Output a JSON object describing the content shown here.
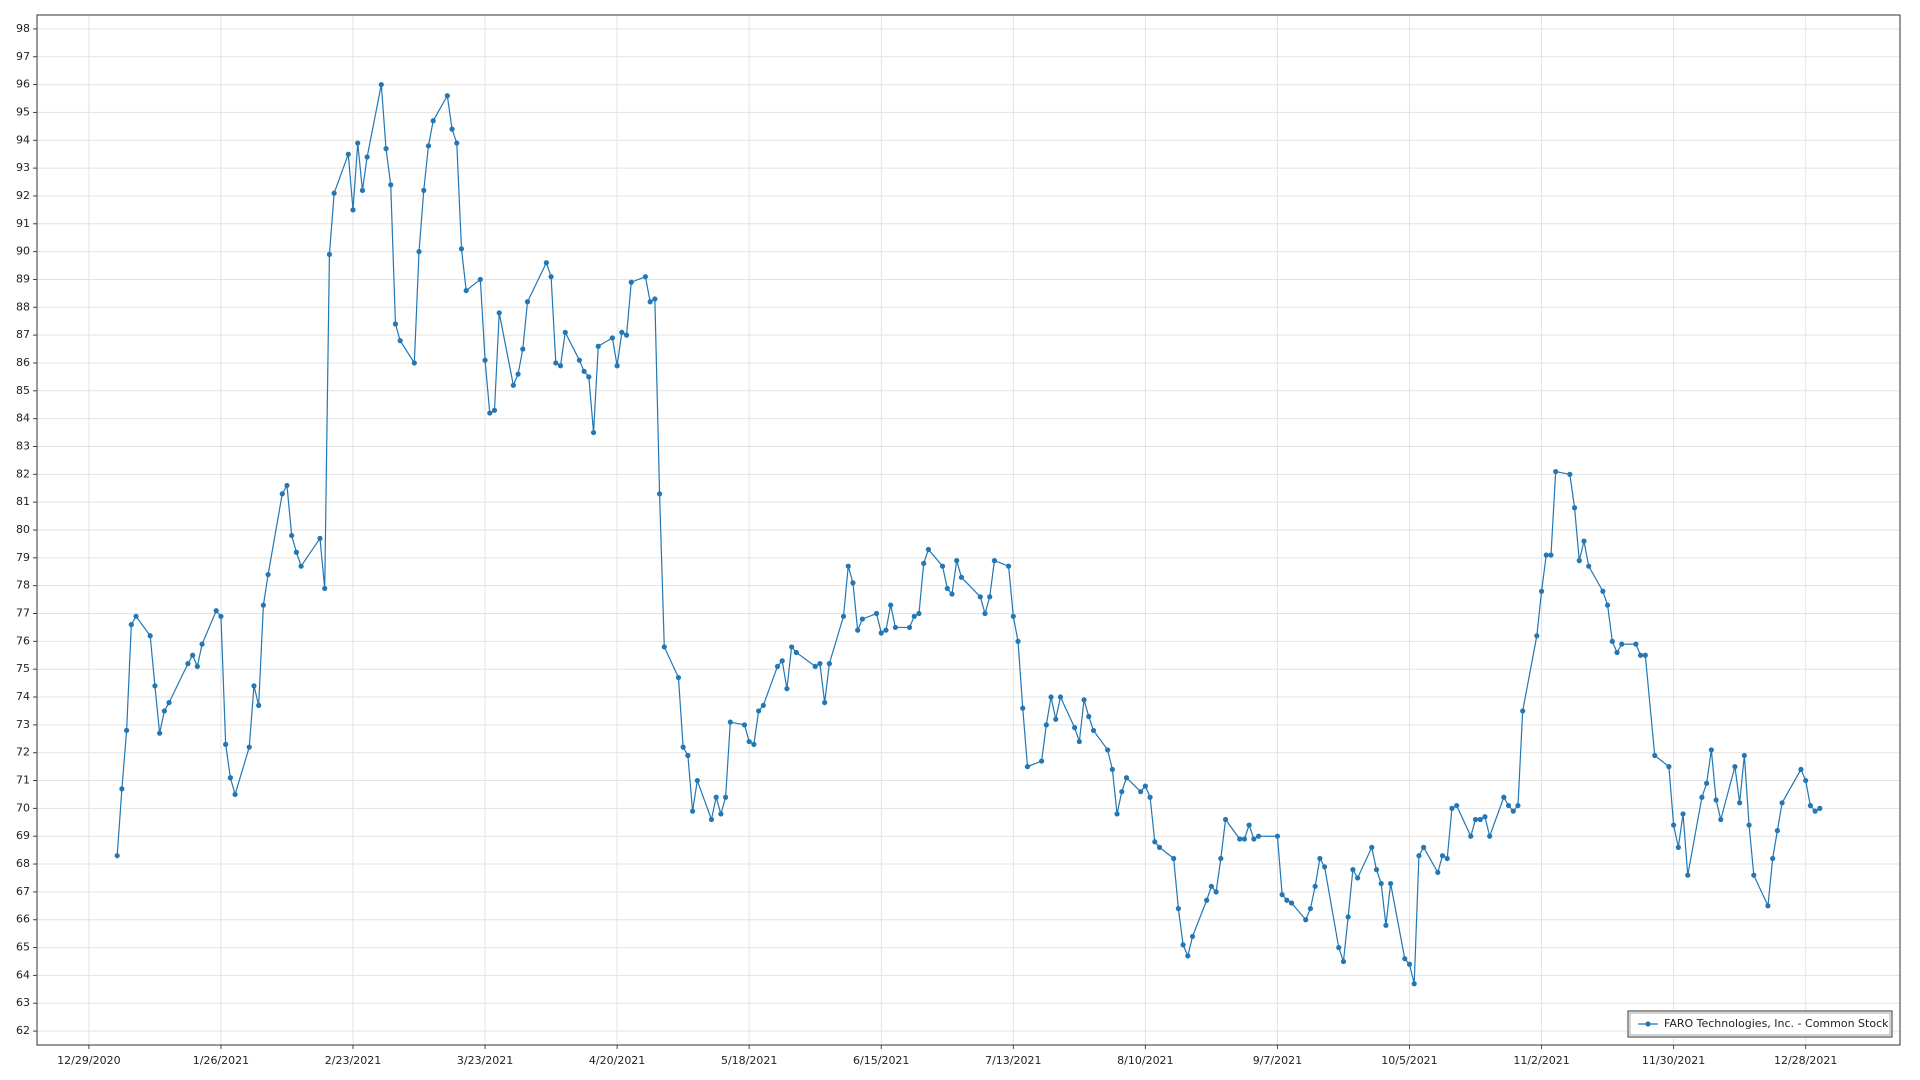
{
  "chart_data": {
    "type": "line",
    "x": [
      "2021-01-04",
      "2021-01-05",
      "2021-01-06",
      "2021-01-07",
      "2021-01-08",
      "2021-01-11",
      "2021-01-12",
      "2021-01-13",
      "2021-01-14",
      "2021-01-15",
      "2021-01-19",
      "2021-01-20",
      "2021-01-21",
      "2021-01-22",
      "2021-01-25",
      "2021-01-26",
      "2021-01-27",
      "2021-01-28",
      "2021-01-29",
      "2021-02-01",
      "2021-02-02",
      "2021-02-03",
      "2021-02-04",
      "2021-02-05",
      "2021-02-08",
      "2021-02-09",
      "2021-02-10",
      "2021-02-11",
      "2021-02-12",
      "2021-02-16",
      "2021-02-17",
      "2021-02-18",
      "2021-02-19",
      "2021-02-22",
      "2021-02-23",
      "2021-02-24",
      "2021-02-25",
      "2021-02-26",
      "2021-03-01",
      "2021-03-02",
      "2021-03-03",
      "2021-03-04",
      "2021-03-05",
      "2021-03-08",
      "2021-03-09",
      "2021-03-10",
      "2021-03-11",
      "2021-03-12",
      "2021-03-15",
      "2021-03-16",
      "2021-03-17",
      "2021-03-18",
      "2021-03-19",
      "2021-03-22",
      "2021-03-23",
      "2021-03-24",
      "2021-03-25",
      "2021-03-26",
      "2021-03-29",
      "2021-03-30",
      "2021-03-31",
      "2021-04-01",
      "2021-04-05",
      "2021-04-06",
      "2021-04-07",
      "2021-04-08",
      "2021-04-09",
      "2021-04-12",
      "2021-04-13",
      "2021-04-14",
      "2021-04-15",
      "2021-04-16",
      "2021-04-19",
      "2021-04-20",
      "2021-04-21",
      "2021-04-22",
      "2021-04-23",
      "2021-04-26",
      "2021-04-27",
      "2021-04-28",
      "2021-04-29",
      "2021-04-30",
      "2021-05-03",
      "2021-05-04",
      "2021-05-05",
      "2021-05-06",
      "2021-05-07",
      "2021-05-10",
      "2021-05-11",
      "2021-05-12",
      "2021-05-13",
      "2021-05-14",
      "2021-05-17",
      "2021-05-18",
      "2021-05-19",
      "2021-05-20",
      "2021-05-21",
      "2021-05-24",
      "2021-05-25",
      "2021-05-26",
      "2021-05-27",
      "2021-05-28",
      "2021-06-01",
      "2021-06-02",
      "2021-06-03",
      "2021-06-04",
      "2021-06-07",
      "2021-06-08",
      "2021-06-09",
      "2021-06-10",
      "2021-06-11",
      "2021-06-14",
      "2021-06-15",
      "2021-06-16",
      "2021-06-17",
      "2021-06-18",
      "2021-06-21",
      "2021-06-22",
      "2021-06-23",
      "2021-06-24",
      "2021-06-25",
      "2021-06-28",
      "2021-06-29",
      "2021-06-30",
      "2021-07-01",
      "2021-07-02",
      "2021-07-06",
      "2021-07-07",
      "2021-07-08",
      "2021-07-09",
      "2021-07-12",
      "2021-07-13",
      "2021-07-14",
      "2021-07-15",
      "2021-07-16",
      "2021-07-19",
      "2021-07-20",
      "2021-07-21",
      "2021-07-22",
      "2021-07-23",
      "2021-07-26",
      "2021-07-27",
      "2021-07-28",
      "2021-07-29",
      "2021-07-30",
      "2021-08-02",
      "2021-08-03",
      "2021-08-04",
      "2021-08-05",
      "2021-08-06",
      "2021-08-09",
      "2021-08-10",
      "2021-08-11",
      "2021-08-12",
      "2021-08-13",
      "2021-08-16",
      "2021-08-17",
      "2021-08-18",
      "2021-08-19",
      "2021-08-20",
      "2021-08-23",
      "2021-08-24",
      "2021-08-25",
      "2021-08-26",
      "2021-08-27",
      "2021-08-30",
      "2021-08-31",
      "2021-09-01",
      "2021-09-02",
      "2021-09-03",
      "2021-09-07",
      "2021-09-08",
      "2021-09-09",
      "2021-09-10",
      "2021-09-13",
      "2021-09-14",
      "2021-09-15",
      "2021-09-16",
      "2021-09-17",
      "2021-09-20",
      "2021-09-21",
      "2021-09-22",
      "2021-09-23",
      "2021-09-24",
      "2021-09-27",
      "2021-09-28",
      "2021-09-29",
      "2021-09-30",
      "2021-10-01",
      "2021-10-04",
      "2021-10-05",
      "2021-10-06",
      "2021-10-07",
      "2021-10-08",
      "2021-10-11",
      "2021-10-12",
      "2021-10-13",
      "2021-10-14",
      "2021-10-15",
      "2021-10-18",
      "2021-10-19",
      "2021-10-20",
      "2021-10-21",
      "2021-10-22",
      "2021-10-25",
      "2021-10-26",
      "2021-10-27",
      "2021-10-28",
      "2021-10-29",
      "2021-11-01",
      "2021-11-02",
      "2021-11-03",
      "2021-11-04",
      "2021-11-05",
      "2021-11-08",
      "2021-11-09",
      "2021-11-10",
      "2021-11-11",
      "2021-11-12",
      "2021-11-15",
      "2021-11-16",
      "2021-11-17",
      "2021-11-18",
      "2021-11-19",
      "2021-11-22",
      "2021-11-23",
      "2021-11-24",
      "2021-11-26",
      "2021-11-29",
      "2021-11-30",
      "2021-12-01",
      "2021-12-02",
      "2021-12-03",
      "2021-12-06",
      "2021-12-07",
      "2021-12-08",
      "2021-12-09",
      "2021-12-10",
      "2021-12-13",
      "2021-12-14",
      "2021-12-15",
      "2021-12-16",
      "2021-12-17",
      "2021-12-20",
      "2021-12-21",
      "2021-12-22",
      "2021-12-23",
      "2021-12-27",
      "2021-12-28",
      "2021-12-29",
      "2021-12-30",
      "2021-12-31"
    ],
    "series": [
      {
        "name": "FARO Technologies, Inc. - Common Stock",
        "color": "#2277b4",
        "values": [
          68.3,
          70.7,
          72.8,
          76.6,
          76.9,
          76.2,
          74.4,
          72.7,
          73.5,
          73.8,
          75.2,
          75.5,
          75.1,
          75.9,
          77.1,
          76.9,
          72.3,
          71.1,
          70.5,
          72.2,
          74.4,
          73.7,
          77.3,
          78.4,
          81.3,
          81.6,
          79.8,
          79.2,
          78.7,
          79.7,
          77.9,
          89.9,
          92.1,
          93.5,
          91.5,
          93.9,
          92.2,
          93.4,
          96.0,
          93.7,
          92.4,
          87.4,
          86.8,
          86.0,
          90.0,
          92.2,
          93.8,
          94.7,
          95.6,
          94.4,
          93.9,
          90.1,
          88.6,
          89.0,
          86.1,
          84.2,
          84.3,
          87.8,
          85.2,
          85.6,
          86.5,
          88.2,
          89.6,
          89.1,
          86.0,
          85.9,
          87.1,
          86.1,
          85.7,
          85.5,
          83.5,
          86.6,
          86.9,
          85.9,
          87.1,
          87.0,
          88.9,
          89.1,
          88.2,
          88.3,
          81.3,
          75.8,
          74.7,
          72.2,
          71.9,
          69.9,
          71.0,
          69.6,
          70.4,
          69.8,
          70.4,
          73.1,
          73.0,
          72.4,
          72.3,
          73.5,
          73.7,
          75.1,
          75.3,
          74.3,
          75.8,
          75.6,
          75.1,
          75.2,
          73.8,
          75.2,
          76.9,
          78.7,
          78.1,
          76.4,
          76.8,
          77.0,
          76.3,
          76.4,
          77.3,
          76.5,
          76.5,
          76.9,
          77.0,
          78.8,
          79.3,
          78.7,
          77.9,
          77.7,
          78.9,
          78.3,
          77.6,
          77.0,
          77.6,
          78.9,
          78.7,
          76.9,
          76.0,
          73.6,
          71.5,
          71.7,
          73.0,
          74.0,
          73.2,
          74.0,
          72.9,
          72.4,
          73.9,
          73.3,
          72.8,
          72.1,
          71.4,
          69.8,
          70.6,
          71.1,
          70.6,
          70.8,
          70.4,
          68.8,
          68.6,
          68.2,
          66.4,
          65.1,
          64.7,
          65.4,
          66.7,
          67.2,
          67.0,
          68.2,
          69.6,
          68.9,
          68.9,
          69.4,
          68.9,
          69.0,
          69.0,
          66.9,
          66.7,
          66.6,
          66.0,
          66.4,
          67.2,
          68.2,
          67.9,
          65.0,
          64.5,
          66.1,
          67.8,
          67.5,
          68.6,
          67.8,
          67.3,
          65.8,
          67.3,
          64.6,
          64.4,
          63.7,
          68.3,
          68.6,
          67.7,
          68.3,
          68.2,
          70.0,
          70.1,
          69.0,
          69.6,
          69.6,
          69.7,
          69.0,
          70.4,
          70.1,
          69.9,
          70.1,
          73.5,
          76.2,
          77.8,
          79.1,
          79.1,
          82.1,
          82.0,
          80.8,
          78.9,
          79.6,
          78.7,
          77.8,
          77.3,
          76.0,
          75.6,
          75.9,
          75.9,
          75.5,
          75.5,
          71.9,
          71.5,
          69.4,
          68.6,
          69.8,
          67.6,
          70.4,
          70.9,
          72.1,
          70.3,
          69.6,
          71.5,
          70.2,
          71.9,
          69.4,
          67.6,
          66.5,
          68.2,
          69.2,
          70.2,
          71.4,
          71.0,
          70.1,
          69.9,
          70.0
        ]
      }
    ],
    "xlim": [
      "2020-12-18",
      "2022-01-17"
    ],
    "xticks": [
      {
        "value": "2020-12-29",
        "label": "12/29/2020"
      },
      {
        "value": "2021-01-26",
        "label": "1/26/2021"
      },
      {
        "value": "2021-02-23",
        "label": "2/23/2021"
      },
      {
        "value": "2021-03-23",
        "label": "3/23/2021"
      },
      {
        "value": "2021-04-20",
        "label": "4/20/2021"
      },
      {
        "value": "2021-05-18",
        "label": "5/18/2021"
      },
      {
        "value": "2021-06-15",
        "label": "6/15/2021"
      },
      {
        "value": "2021-07-13",
        "label": "7/13/2021"
      },
      {
        "value": "2021-08-10",
        "label": "8/10/2021"
      },
      {
        "value": "2021-09-07",
        "label": "9/7/2021"
      },
      {
        "value": "2021-10-05",
        "label": "10/5/2021"
      },
      {
        "value": "2021-11-02",
        "label": "11/2/2021"
      },
      {
        "value": "2021-11-30",
        "label": "11/30/2021"
      },
      {
        "value": "2021-12-28",
        "label": "12/28/2021"
      }
    ],
    "ylim": [
      61.5,
      98.5
    ],
    "yticks": [
      62,
      63,
      64,
      65,
      66,
      67,
      68,
      69,
      70,
      71,
      72,
      73,
      74,
      75,
      76,
      77,
      78,
      79,
      80,
      81,
      82,
      83,
      84,
      85,
      86,
      87,
      88,
      89,
      90,
      91,
      92,
      93,
      94,
      95,
      96,
      97,
      98
    ],
    "grid": true,
    "legend": "lower right"
  }
}
